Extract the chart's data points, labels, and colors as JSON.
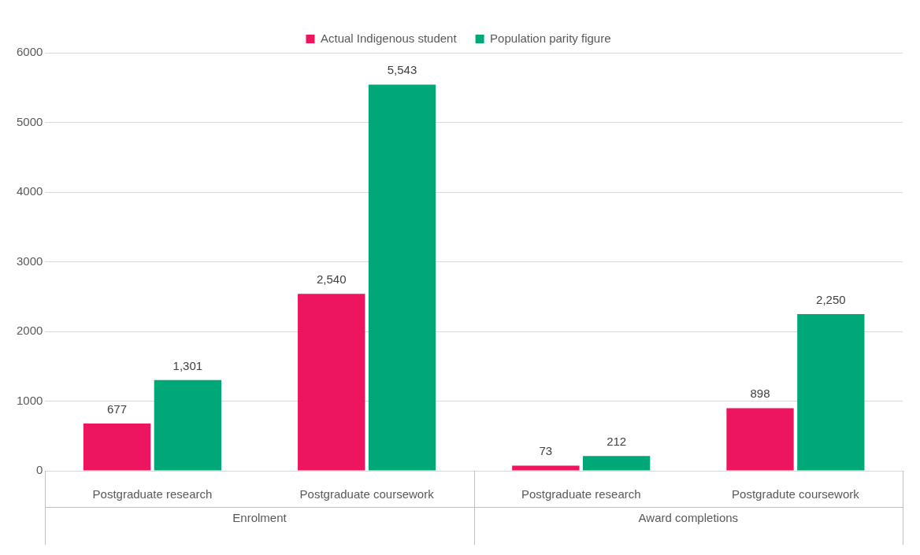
{
  "chart_data": {
    "type": "bar",
    "categories": [
      "Postgraduate research",
      "Postgraduate coursework",
      "Postgraduate research",
      "Postgradute coursework"
    ],
    "series": [
      {
        "name": "Actual Indigenous student",
        "color": "#ee1560",
        "values": [
          677,
          2540,
          73,
          898
        ],
        "value_labels": [
          "677",
          "2,540",
          "73",
          "898"
        ]
      },
      {
        "name": "Population parity figure",
        "color": "#00a878",
        "values": [
          1301,
          5543,
          212,
          2250
        ],
        "value_labels": [
          "1,301",
          "5,543",
          "212",
          "2,250"
        ]
      }
    ],
    "annotations": [
      "Enrolment",
      "Award completions"
    ],
    "ylim": [
      0,
      6000
    ],
    "yticks": [
      0,
      1000,
      2000,
      3000,
      4000,
      5000,
      6000
    ],
    "grid": "y",
    "legend": "top"
  }
}
